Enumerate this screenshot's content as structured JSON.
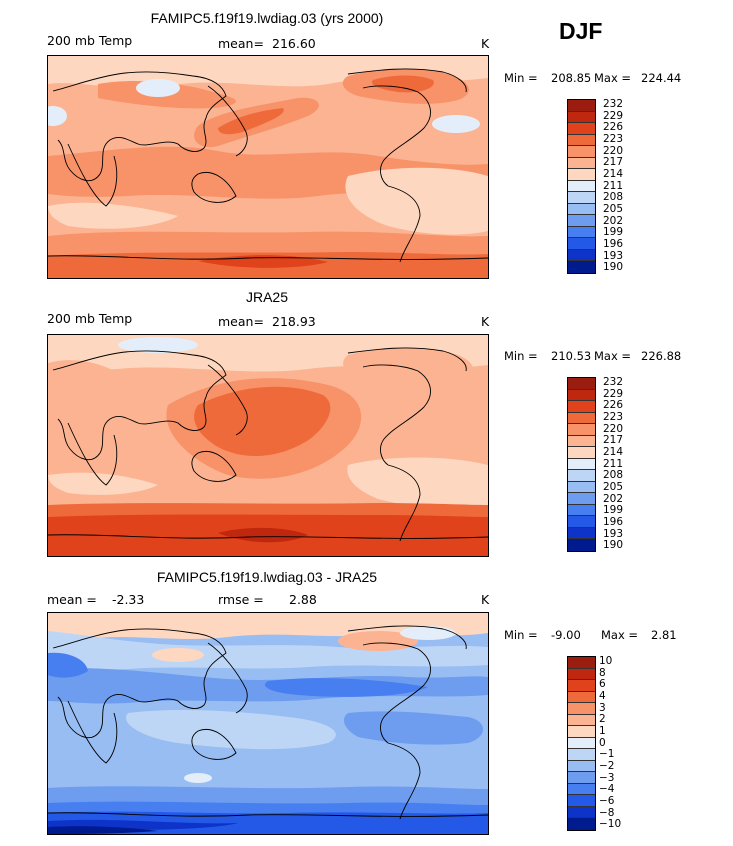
{
  "season": "DJF",
  "chart_data": [
    {
      "type": "heatmap",
      "title": "FAMIPC5.f19f19.lwdiag.03 (yrs 2000)",
      "field": "200 mb Temp",
      "stat_label": "mean=",
      "stat_value": "216.60",
      "units": "K",
      "min_label": "Min =",
      "min": "208.85",
      "max_label": "Max =",
      "max": "224.44",
      "colorbar_levels": [
        "232",
        "229",
        "226",
        "223",
        "220",
        "217",
        "214",
        "211",
        "208",
        "205",
        "202",
        "199",
        "196",
        "193",
        "190"
      ],
      "colorbar_colors": [
        "#9a1d0f",
        "#c0270f",
        "#e0421b",
        "#ef6a3b",
        "#f79269",
        "#fbb391",
        "#fdd7bf",
        "#e4eefa",
        "#bdd6f6",
        "#98bdf2",
        "#6e9df0",
        "#477ff0",
        "#2459e8",
        "#0d33c9",
        "#001b8e"
      ]
    },
    {
      "type": "heatmap",
      "title": "JRA25",
      "field": "200 mb Temp",
      "stat_label": "mean=",
      "stat_value": "218.93",
      "units": "K",
      "min_label": "Min =",
      "min": "210.53",
      "max_label": "Max =",
      "max": "226.88",
      "colorbar_levels": [
        "232",
        "229",
        "226",
        "223",
        "220",
        "217",
        "214",
        "211",
        "208",
        "205",
        "202",
        "199",
        "196",
        "193",
        "190"
      ],
      "colorbar_colors": [
        "#9a1d0f",
        "#c0270f",
        "#e0421b",
        "#ef6a3b",
        "#f79269",
        "#fbb391",
        "#fdd7bf",
        "#e4eefa",
        "#bdd6f6",
        "#98bdf2",
        "#6e9df0",
        "#477ff0",
        "#2459e8",
        "#0d33c9",
        "#001b8e"
      ]
    },
    {
      "type": "heatmap",
      "title": "FAMIPC5.f19f19.lwdiag.03 - JRA25",
      "stat_label": "mean =",
      "stat_value": "-2.33",
      "rmse_label": "rmse =",
      "rmse_value": "2.88",
      "units": "K",
      "min_label": "Min =",
      "min": "-9.00",
      "max_label": "Max =",
      "max": "2.81",
      "colorbar_levels": [
        "10",
        "8",
        "6",
        "4",
        "3",
        "2",
        "1",
        "0",
        "-1",
        "-2",
        "-3",
        "-4",
        "-6",
        "-8",
        "-10"
      ],
      "colorbar_colors": [
        "#9a1d0f",
        "#c0270f",
        "#e0421b",
        "#ef6a3b",
        "#f79269",
        "#fbb391",
        "#fdd7bf",
        "#e4eefa",
        "#bdd6f6",
        "#98bdf2",
        "#6e9df0",
        "#477ff0",
        "#2459e8",
        "#0d33c9",
        "#001b8e"
      ]
    }
  ]
}
